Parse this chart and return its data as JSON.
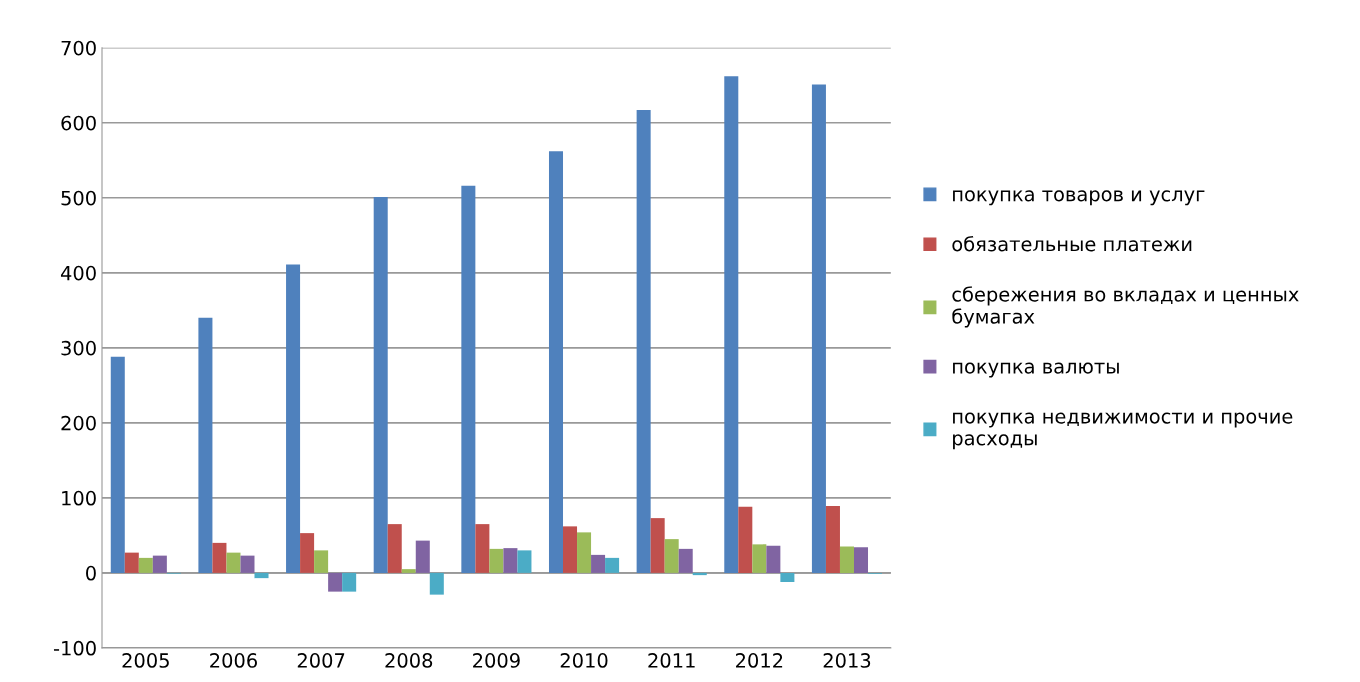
{
  "chart_data": {
    "type": "bar",
    "categories": [
      "2005",
      "2006",
      "2007",
      "2008",
      "2009",
      "2010",
      "2011",
      "2012",
      "2013"
    ],
    "series": [
      {
        "name": "покупка товаров и услуг",
        "color": "#4f81bd",
        "values": [
          288,
          340,
          411,
          501,
          516,
          562,
          617,
          662,
          651
        ]
      },
      {
        "name": "обязательные платежи",
        "color": "#c0504d",
        "values": [
          27,
          40,
          53,
          65,
          65,
          62,
          73,
          88,
          89
        ]
      },
      {
        "name": "сбережения во вкладах и ценных бумагах",
        "color": "#9bbb59",
        "values": [
          20,
          27,
          30,
          5,
          32,
          54,
          45,
          38,
          35
        ]
      },
      {
        "name": "покупка валюты",
        "color": "#8064a2",
        "values": [
          23,
          23,
          -25,
          43,
          33,
          24,
          32,
          36,
          34
        ]
      },
      {
        "name": "покупка недвижимости и прочие расходы",
        "color": "#4bacc6",
        "values": [
          -1,
          -7,
          -25,
          -29,
          30,
          20,
          -3,
          -12,
          -1
        ]
      }
    ],
    "ylim": [
      -100,
      700
    ],
    "yticks": [
      -100,
      0,
      100,
      200,
      300,
      400,
      500,
      600,
      700
    ],
    "grid": "y",
    "legend": "right"
  }
}
